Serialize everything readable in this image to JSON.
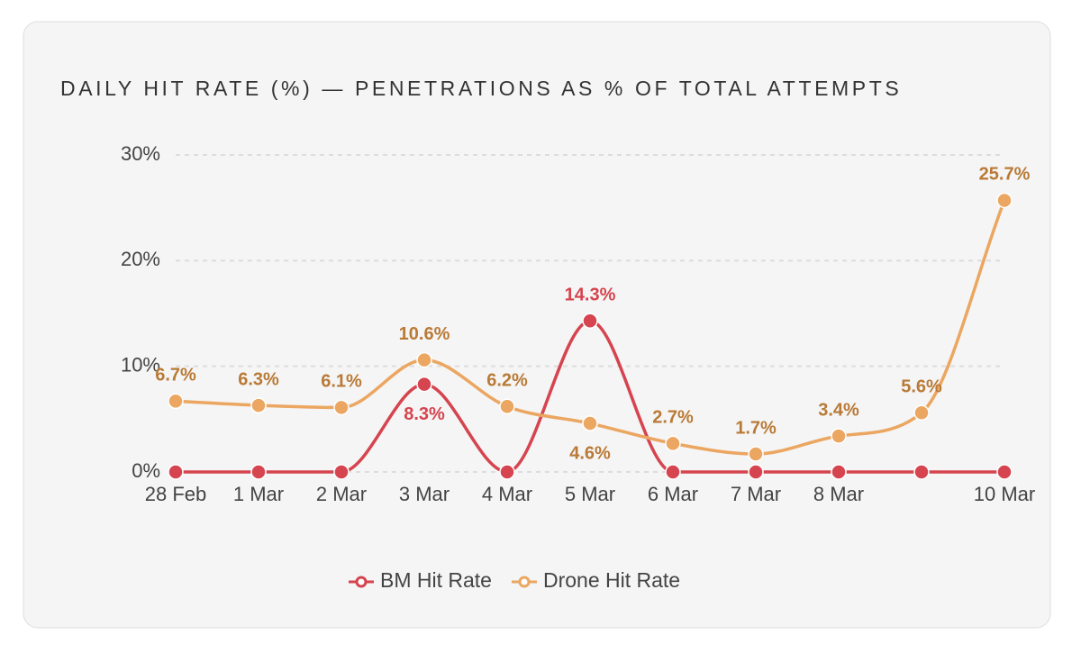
{
  "chart_data": {
    "type": "line",
    "title": "DAILY HIT RATE (%) — PENETRATIONS AS % OF TOTAL ATTEMPTS",
    "categories": [
      "28 Feb",
      "1 Mar",
      "2 Mar",
      "3 Mar",
      "4 Mar",
      "5 Mar",
      "6 Mar",
      "7 Mar",
      "8 Mar",
      null,
      "10 Mar"
    ],
    "series": [
      {
        "name": "BM Hit Rate",
        "color": "#d5444f",
        "values": [
          0,
          0,
          0,
          8.3,
          0,
          14.3,
          0,
          0,
          0,
          0,
          0
        ],
        "value_labels": [
          null,
          null,
          null,
          "8.3%",
          null,
          "14.3%",
          null,
          null,
          null,
          null,
          null
        ]
      },
      {
        "name": "Drone Hit Rate",
        "color": "#eba661",
        "values": [
          6.7,
          6.3,
          6.1,
          10.6,
          6.2,
          4.6,
          2.7,
          1.7,
          3.4,
          5.6,
          25.7
        ],
        "value_labels": [
          "6.7%",
          "6.3%",
          "6.1%",
          "10.6%",
          "6.2%",
          "4.6%",
          "2.7%",
          "1.7%",
          "3.4%",
          "5.6%",
          "25.7%"
        ]
      }
    ],
    "ylim": [
      0,
      30
    ],
    "yticks": [
      {
        "value": 0,
        "label": "0%"
      },
      {
        "value": 10,
        "label": "10%"
      },
      {
        "value": 20,
        "label": "20%"
      },
      {
        "value": 30,
        "label": "30%"
      }
    ],
    "grid": true,
    "legend": "bottom"
  }
}
